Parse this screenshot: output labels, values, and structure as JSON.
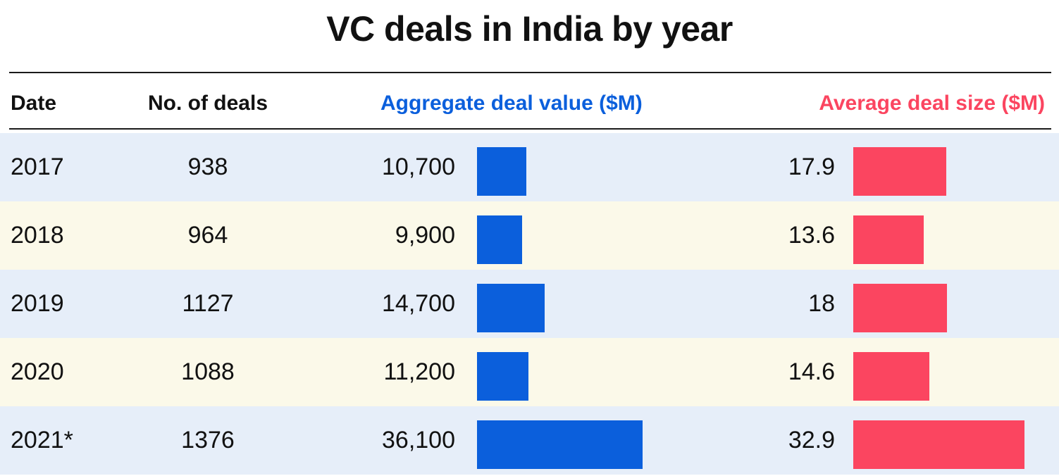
{
  "colors": {
    "aggregate": "#0b5fdc",
    "average": "#fb4560",
    "row_alt_1": "#e6eef9",
    "row_alt_2": "#fbf9e9"
  },
  "chart_data": {
    "type": "table",
    "title": "VC deals in India by year",
    "columns": [
      "Date",
      "No. of deals",
      "Aggregate deal value ($M)",
      "Average deal size ($M)"
    ],
    "aggregate_max": 36100,
    "average_max": 32.9,
    "rows": [
      {
        "date": "2017",
        "deals": "938",
        "aggregate": 10700,
        "aggregate_label": "10,700",
        "average": 17.9,
        "average_label": "17.9"
      },
      {
        "date": "2018",
        "deals": "964",
        "aggregate": 9900,
        "aggregate_label": "9,900",
        "average": 13.6,
        "average_label": "13.6"
      },
      {
        "date": "2019",
        "deals": "1127",
        "aggregate": 14700,
        "aggregate_label": "14,700",
        "average": 18,
        "average_label": "18"
      },
      {
        "date": "2020",
        "deals": "1088",
        "aggregate": 11200,
        "aggregate_label": "11,200",
        "average": 14.6,
        "average_label": "14.6"
      },
      {
        "date": "2021*",
        "deals": "1376",
        "aggregate": 36100,
        "aggregate_label": "36,100",
        "average": 32.9,
        "average_label": "32.9"
      }
    ]
  }
}
